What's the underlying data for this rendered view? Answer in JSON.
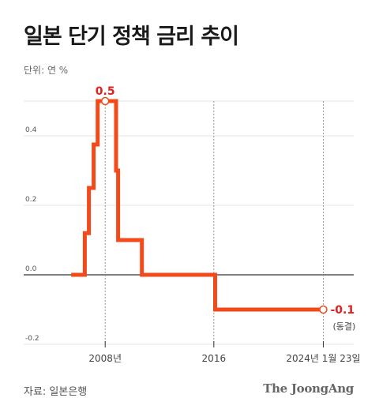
{
  "title": "일본 단기 정책 금리 추이",
  "unit_label": "단위: 연 %",
  "source": "자료: 일본은행",
  "logo": "The JoongAng",
  "colors": {
    "line": "#f24a1a",
    "accent": "#e02020"
  },
  "chart_data": {
    "type": "line",
    "step": true,
    "title": "일본 단기 정책 금리 추이",
    "ylabel": "단위: 연 %",
    "ylim": [
      -0.2,
      0.5
    ],
    "yticks": [
      0.4,
      0.2,
      0.0,
      -0.2
    ],
    "ytick_labels": [
      "0.4",
      "0.2",
      "0.0",
      "-0.2"
    ],
    "xlim": [
      2002.0,
      2026.3
    ],
    "xticks": [
      2008,
      2016,
      2024.06
    ],
    "xtick_labels": [
      "2008년",
      "2016",
      "2024년 1월 23일"
    ],
    "grid": true,
    "series": [
      {
        "x": [
          2005.5,
          2006.5,
          2006.5,
          2006.8,
          2006.8,
          2007.15,
          2007.15,
          2007.45,
          2007.45,
          2008.8,
          2008.8,
          2008.95,
          2008.95,
          2010.7,
          2010.7,
          2016.1,
          2016.1,
          2024.06
        ],
        "y": [
          0.0,
          0.0,
          0.12,
          0.12,
          0.25,
          0.25,
          0.375,
          0.375,
          0.5,
          0.5,
          0.3,
          0.3,
          0.1,
          0.1,
          0.0,
          0.0,
          -0.1,
          -0.1
        ]
      }
    ],
    "annotations": [
      {
        "x": 2008.0,
        "y": 0.5,
        "text": "0.5"
      },
      {
        "x": 2024.06,
        "y": -0.1,
        "text": "-0.1",
        "subtext": "(동결)"
      }
    ]
  }
}
